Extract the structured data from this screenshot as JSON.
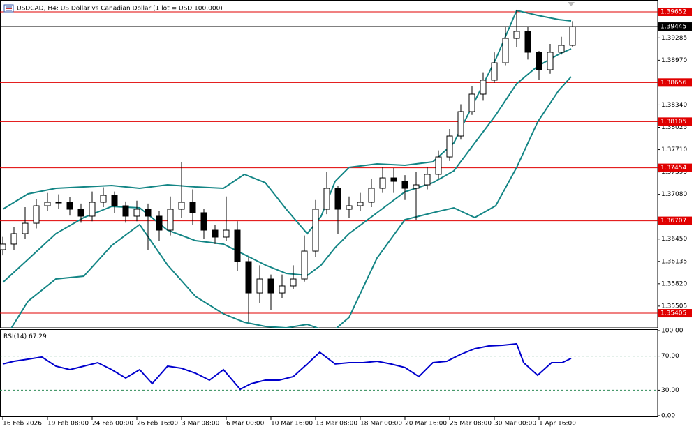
{
  "chart_data": [
    {
      "type": "candlestick",
      "title": "USDCAD, H4: US Dollar vs Canadian Dollar (1 lot = USD 100,000)",
      "x": [
        0,
        4,
        8,
        12,
        16,
        20,
        24,
        28,
        32,
        36,
        40,
        44,
        48,
        52,
        56,
        60,
        64,
        68,
        72,
        76,
        80,
        84,
        88,
        92,
        96,
        100,
        104,
        108,
        112,
        116,
        120,
        124,
        128,
        132,
        136,
        140,
        144,
        148,
        152,
        156,
        160,
        164,
        168,
        172,
        176,
        180,
        184,
        188,
        192,
        196,
        200,
        204
      ],
      "open": [
        1.363,
        1.36379,
        1.36526,
        1.36673,
        1.36919,
        1.36968,
        1.36968,
        1.3687,
        1.36772,
        1.36968,
        1.37066,
        1.36919,
        1.36772,
        1.3687,
        1.36772,
        1.36575,
        1.3687,
        1.36968,
        1.36821,
        1.36575,
        1.36477,
        1.36575,
        1.36133,
        1.3569,
        1.35887,
        1.3569,
        1.35789,
        1.35887,
        1.3628,
        1.3687,
        1.37165,
        1.3687,
        1.36919,
        1.36968,
        1.37165,
        1.37312,
        1.37263,
        1.37165,
        1.37214,
        1.37362,
        1.37607,
        1.37902,
        1.38246,
        1.38492,
        1.38689,
        1.38934,
        1.39278,
        1.39377,
        1.39082,
        1.38836,
        1.39082,
        1.3918
      ],
      "high": [
        1.3648,
        1.3662,
        1.369,
        1.3701,
        1.371,
        1.3708,
        1.3704,
        1.3695,
        1.3712,
        1.3718,
        1.3712,
        1.3698,
        1.3699,
        1.3695,
        1.3685,
        1.3705,
        1.37529,
        1.3715,
        1.3688,
        1.3665,
        1.3705,
        1.367,
        1.362,
        1.3608,
        1.3595,
        1.3595,
        1.3608,
        1.365,
        1.37,
        1.374,
        1.372,
        1.3705,
        1.371,
        1.373,
        1.3746,
        1.3745,
        1.3735,
        1.374,
        1.3746,
        1.377,
        1.38,
        1.3835,
        1.386,
        1.388,
        1.3908,
        1.3945,
        1.39672,
        1.3945,
        1.391,
        1.392,
        1.393,
        1.3952
      ],
      "low": [
        1.3622,
        1.363,
        1.3645,
        1.366,
        1.3685,
        1.3687,
        1.3678,
        1.3668,
        1.367,
        1.369,
        1.3682,
        1.3668,
        1.367,
        1.3629,
        1.3642,
        1.365,
        1.3675,
        1.3665,
        1.3645,
        1.3638,
        1.3642,
        1.36,
        1.35278,
        1.3555,
        1.3545,
        1.3562,
        1.3575,
        1.3585,
        1.362,
        1.368,
        1.36526,
        1.3675,
        1.3685,
        1.369,
        1.371,
        1.371,
        1.37,
        1.36722,
        1.3715,
        1.373,
        1.3755,
        1.3785,
        1.382,
        1.384,
        1.3865,
        1.389,
        1.3915,
        1.3898,
        1.38689,
        1.3878,
        1.3905,
        1.3915
      ],
      "close": [
        1.36379,
        1.36526,
        1.36673,
        1.36919,
        1.36968,
        1.36968,
        1.3687,
        1.36772,
        1.36968,
        1.37066,
        1.36919,
        1.36772,
        1.3687,
        1.36772,
        1.36575,
        1.3687,
        1.36968,
        1.36821,
        1.36575,
        1.36477,
        1.36575,
        1.36133,
        1.3569,
        1.35887,
        1.3569,
        1.35789,
        1.35887,
        1.3628,
        1.3687,
        1.37165,
        1.3687,
        1.36919,
        1.36968,
        1.37165,
        1.37312,
        1.37263,
        1.37165,
        1.37214,
        1.37362,
        1.37607,
        1.37902,
        1.38246,
        1.38492,
        1.38689,
        1.38934,
        1.39278,
        1.39377,
        1.39082,
        1.38836,
        1.39082,
        1.3918,
        1.39445
      ],
      "color": "#000000",
      "overlays": [
        {
          "color": "#138585",
          "x": [
            0,
            9,
            19,
            29,
            39,
            49,
            59,
            69,
            79,
            86.5,
            94,
            101.5,
            109,
            114,
            119,
            124,
            134,
            144,
            154,
            161.5,
            169,
            176.5,
            184,
            191.5,
            199,
            203.5
          ],
          "values": [
            1.3687,
            1.37086,
            1.37165,
            1.37185,
            1.37204,
            1.37165,
            1.37214,
            1.37185,
            1.37165,
            1.37362,
            1.37244,
            1.3687,
            1.36526,
            1.36772,
            1.37263,
            1.3746,
            1.37509,
            1.37489,
            1.37538,
            1.37804,
            1.38394,
            1.38983,
            1.39672,
            1.39603,
            1.39544,
            1.39524
          ]
        },
        {
          "color": "#138585",
          "x": [
            0,
            9,
            19,
            29,
            39,
            49,
            59,
            69,
            79,
            86.5,
            94,
            101.5,
            109,
            114,
            119,
            124,
            134,
            144,
            154,
            161.5,
            169,
            176.5,
            184,
            191.5,
            199,
            203.5
          ],
          "values": [
            1.35838,
            1.36162,
            1.36526,
            1.36752,
            1.36909,
            1.3689,
            1.36575,
            1.36428,
            1.36379,
            1.36231,
            1.36084,
            1.35966,
            1.35936,
            1.36084,
            1.36329,
            1.36526,
            1.36821,
            1.37116,
            1.37244,
            1.37411,
            1.37804,
            1.38197,
            1.38639,
            1.38885,
            1.39052,
            1.39131
          ]
        },
        {
          "color": "#138585",
          "x": [
            0,
            9,
            19,
            29,
            39,
            49,
            59,
            69,
            79,
            86.5,
            94,
            101.5,
            109,
            114,
            119,
            124,
            134,
            144,
            154,
            161.5,
            169,
            176.5,
            184,
            191.5,
            199,
            203.5
          ],
          "values": [
            1.35002,
            1.35572,
            1.35887,
            1.35926,
            1.36359,
            1.36654,
            1.36084,
            1.35641,
            1.35396,
            1.35278,
            1.35219,
            1.35199,
            1.35248,
            1.35179,
            1.35179,
            1.35346,
            1.36182,
            1.36723,
            1.36821,
            1.3689,
            1.36752,
            1.36919,
            1.3746,
            1.38099,
            1.38541,
            1.38738
          ]
        }
      ],
      "levels": [
        1.39652,
        1.38656,
        1.38105,
        1.37454,
        1.36707,
        1.35405
      ],
      "level_color": "#e00000",
      "current_price": 1.39445,
      "xlim": [
        -1,
        234.5
      ],
      "ylim": [
        1.35199,
        1.39819
      ],
      "yticks": [
        {
          "value": 1.39285,
          "label": "1.39285"
        },
        {
          "value": 1.3897,
          "label": "1.38970"
        },
        {
          "value": 1.3834,
          "label": "1.38340"
        },
        {
          "value": 1.38025,
          "label": "1.38025"
        },
        {
          "value": 1.3771,
          "label": "1.37710"
        },
        {
          "value": 1.37395,
          "label": "1.37395"
        },
        {
          "value": 1.3708,
          "label": "1.37080"
        },
        {
          "value": 1.3645,
          "label": "1.36450"
        },
        {
          "value": 1.36135,
          "label": "1.36135"
        },
        {
          "value": 1.3582,
          "label": "1.35820"
        },
        {
          "value": 1.35505,
          "label": "1.35505"
        }
      ],
      "xticks": [
        {
          "value": 0,
          "label": "16 Feb 2026"
        },
        {
          "value": 16,
          "label": "19 Feb 08:00"
        },
        {
          "value": 32,
          "label": "24 Feb 00:00"
        },
        {
          "value": 48,
          "label": "26 Feb 16:00"
        },
        {
          "value": 64,
          "label": "3 Mar 08:00"
        },
        {
          "value": 80,
          "label": "6 Mar 00:00"
        },
        {
          "value": 96,
          "label": "10 Mar 16:00"
        },
        {
          "value": 112,
          "label": "13 Mar 08:00"
        },
        {
          "value": 128,
          "label": "18 Mar 00:00"
        },
        {
          "value": 144,
          "label": "20 Mar 16:00"
        },
        {
          "value": 160,
          "label": "25 Mar 08:00"
        },
        {
          "value": 176,
          "label": "30 Mar 00:00"
        },
        {
          "value": 192,
          "label": "1 Apr 16:00"
        }
      ]
    },
    {
      "type": "line",
      "title": "RSI(14)",
      "color": "#0000cd",
      "x": [
        0,
        4,
        9,
        14,
        19,
        24,
        29,
        34,
        39,
        44,
        49,
        53.5,
        59,
        64,
        69,
        74,
        79,
        85,
        89,
        94,
        99,
        104,
        109,
        113.5,
        119,
        124,
        129,
        134,
        139,
        144,
        149,
        154,
        159,
        164,
        169,
        174,
        179,
        184,
        186.5,
        191.5,
        196.5,
        200.25,
        203.5
      ],
      "values": [
        60.7,
        63.9,
        66.4,
        68.9,
        58.2,
        54.1,
        58.2,
        62.3,
        54.1,
        44.3,
        54.1,
        37.7,
        58.2,
        55.7,
        50.0,
        41.8,
        54.1,
        31.1,
        37.7,
        41.8,
        41.8,
        45.9,
        60.7,
        74.6,
        60.7,
        62.3,
        62.3,
        63.9,
        60.7,
        56.6,
        45.9,
        62.3,
        63.9,
        72.1,
        78.7,
        82.0,
        82.8,
        84.4,
        62.3,
        47.5,
        62.3,
        62.3,
        67.29
      ],
      "levels": [
        70,
        30
      ],
      "level_color": "#2e8b57",
      "xlim": [
        -1,
        234.5
      ],
      "ylim": [
        0,
        100
      ],
      "yticks": [
        {
          "value": 100,
          "label": "100.00"
        },
        {
          "value": 70,
          "label": "70.00"
        },
        {
          "value": 30,
          "label": "30.00"
        },
        {
          "value": 0,
          "label": "0.00"
        }
      ]
    }
  ]
}
